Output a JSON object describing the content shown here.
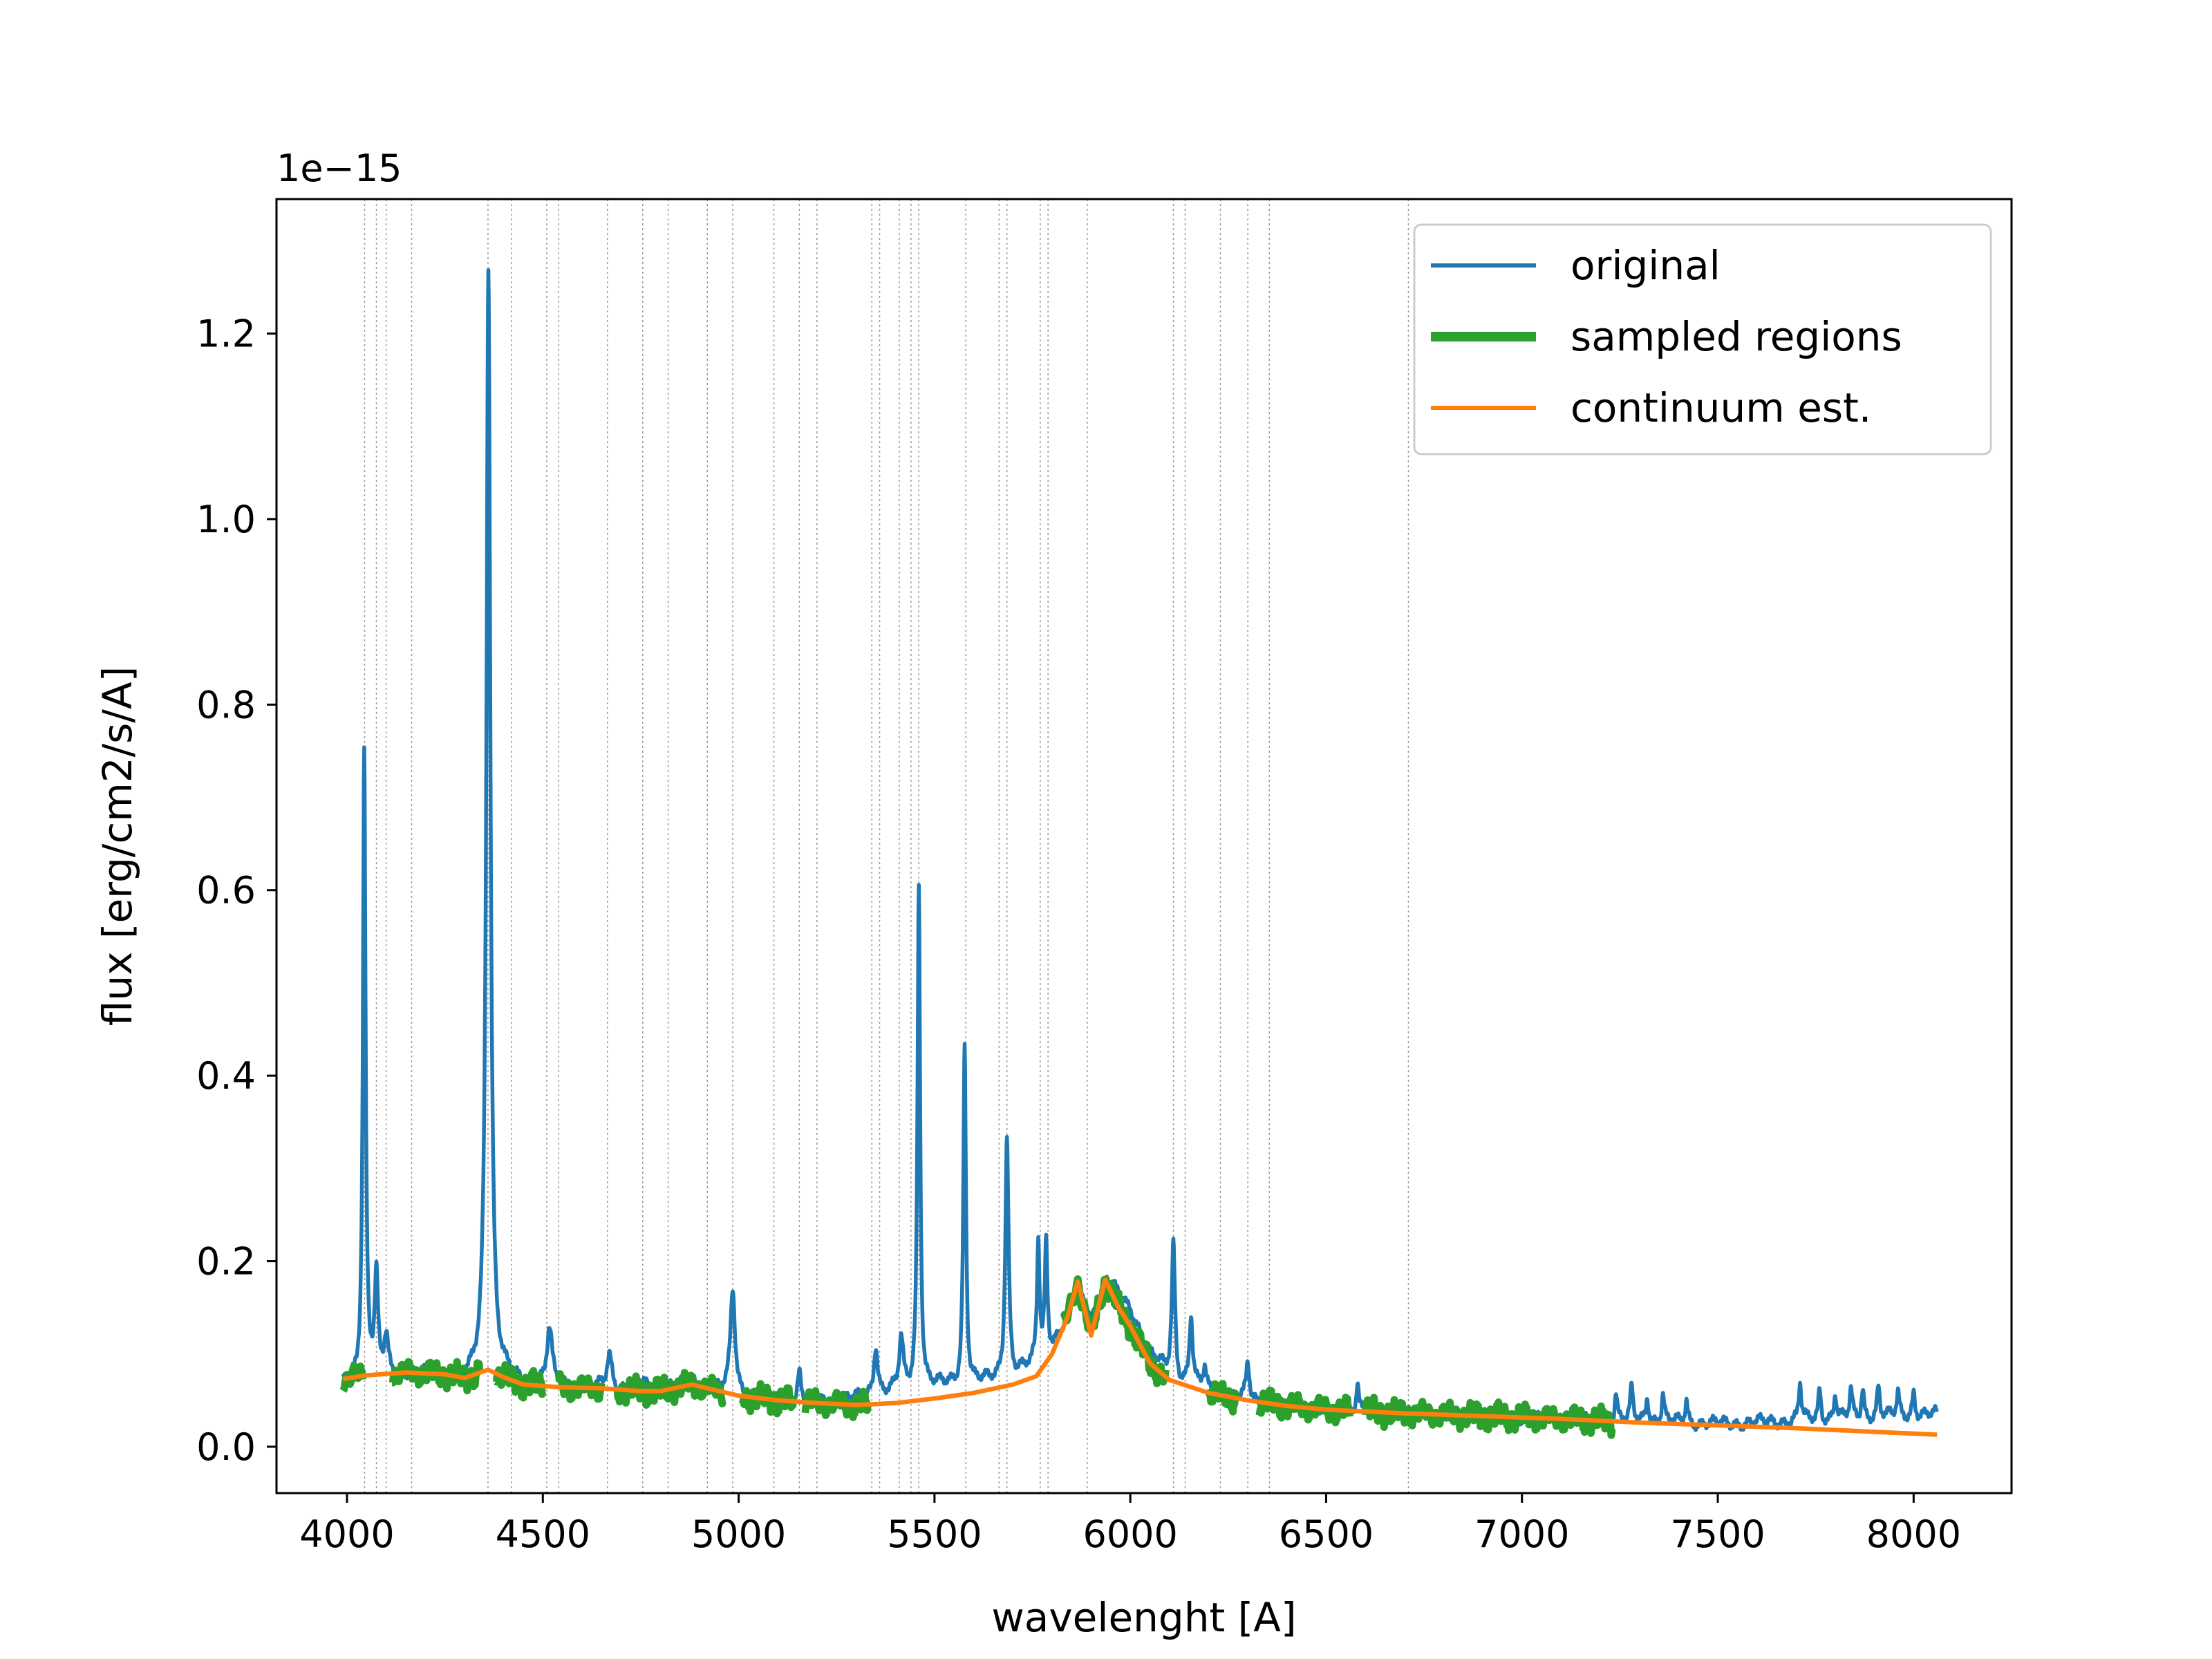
{
  "chart_data": {
    "type": "line",
    "xlabel": "wavelenght [A]",
    "ylabel": "flux [erg/cm2/s/A]",
    "y_offset_label": "1e−15",
    "xlim": [
      3820,
      8250
    ],
    "ylim": [
      -0.05,
      1.345
    ],
    "y_scale": 1e-15,
    "xticks": [
      4000,
      4500,
      5000,
      5500,
      6000,
      6500,
      7000,
      7500,
      8000
    ],
    "yticks": [
      0.0,
      0.2,
      0.4,
      0.6,
      0.8,
      1.0,
      1.2
    ],
    "ytick_labels": [
      "0.0",
      "0.2",
      "0.4",
      "0.6",
      "0.8",
      "1.0",
      "1.2"
    ],
    "grid": false,
    "legend_placement": "top-right",
    "legend": [
      {
        "label": "original",
        "color": "#1f77b4"
      },
      {
        "label": "sampled regions",
        "color": "#2ca02c"
      },
      {
        "label": "continuum est.",
        "color": "#ff7f0e"
      }
    ],
    "vertical_markers": [
      4045,
      4075,
      4100,
      4165,
      4360,
      4420,
      4510,
      4540,
      4665,
      4755,
      4820,
      4920,
      4985,
      5090,
      5155,
      5200,
      5340,
      5360,
      5410,
      5440,
      5460,
      5580,
      5665,
      5685,
      5770,
      5790,
      5890,
      6110,
      6140,
      6230,
      6300,
      6355,
      6710
    ],
    "series": [
      {
        "name": "original",
        "color": "#1f77b4",
        "baseline": [
          [
            3990,
            0.07
          ],
          [
            4100,
            0.08
          ],
          [
            4200,
            0.077
          ],
          [
            4300,
            0.07
          ],
          [
            4360,
            0.08
          ],
          [
            4450,
            0.068
          ],
          [
            4550,
            0.066
          ],
          [
            4700,
            0.062
          ],
          [
            4800,
            0.065
          ],
          [
            4900,
            0.067
          ],
          [
            4960,
            0.06
          ],
          [
            5000,
            0.057
          ],
          [
            5100,
            0.05
          ],
          [
            5200,
            0.049
          ],
          [
            5300,
            0.052
          ],
          [
            5400,
            0.06
          ],
          [
            5500,
            0.065
          ],
          [
            5600,
            0.068
          ],
          [
            5700,
            0.075
          ],
          [
            5760,
            0.09
          ],
          [
            5820,
            0.12
          ],
          [
            5870,
            0.17
          ],
          [
            5900,
            0.14
          ],
          [
            5940,
            0.18
          ],
          [
            6000,
            0.15
          ],
          [
            6050,
            0.1
          ],
          [
            6120,
            0.07
          ],
          [
            6200,
            0.06
          ],
          [
            6300,
            0.05
          ],
          [
            6400,
            0.045
          ],
          [
            6500,
            0.04
          ],
          [
            6700,
            0.036
          ],
          [
            6900,
            0.033
          ],
          [
            7100,
            0.03
          ],
          [
            7300,
            0.028
          ],
          [
            7500,
            0.025
          ],
          [
            7700,
            0.028
          ],
          [
            7900,
            0.032
          ],
          [
            8060,
            0.035
          ]
        ],
        "peaks": [
          {
            "x": 4044,
            "y": 0.75,
            "w": 4
          },
          {
            "x": 4075,
            "y": 0.178,
            "w": 5
          },
          {
            "x": 4100,
            "y": 0.115,
            "w": 6
          },
          {
            "x": 4361,
            "y": 1.275,
            "w": 6
          },
          {
            "x": 4517,
            "y": 0.125,
            "w": 8
          },
          {
            "x": 4670,
            "y": 0.1,
            "w": 8
          },
          {
            "x": 4755,
            "y": 0.07,
            "w": 6
          },
          {
            "x": 4880,
            "y": 0.073,
            "w": 8
          },
          {
            "x": 4985,
            "y": 0.17,
            "w": 7
          },
          {
            "x": 5155,
            "y": 0.08,
            "w": 5
          },
          {
            "x": 5350,
            "y": 0.11,
            "w": 6
          },
          {
            "x": 5415,
            "y": 0.115,
            "w": 6
          },
          {
            "x": 5460,
            "y": 0.605,
            "w": 4
          },
          {
            "x": 5577,
            "y": 0.433,
            "w": 4
          },
          {
            "x": 5685,
            "y": 0.335,
            "w": 5
          },
          {
            "x": 5765,
            "y": 0.222,
            "w": 4
          },
          {
            "x": 5785,
            "y": 0.22,
            "w": 4
          },
          {
            "x": 6110,
            "y": 0.22,
            "w": 5
          },
          {
            "x": 6155,
            "y": 0.14,
            "w": 5
          },
          {
            "x": 6190,
            "y": 0.085,
            "w": 5
          },
          {
            "x": 6300,
            "y": 0.09,
            "w": 5
          },
          {
            "x": 6580,
            "y": 0.072,
            "w": 4
          },
          {
            "x": 7240,
            "y": 0.06,
            "w": 4
          },
          {
            "x": 7280,
            "y": 0.062,
            "w": 4
          },
          {
            "x": 7320,
            "y": 0.055,
            "w": 4
          },
          {
            "x": 7360,
            "y": 0.057,
            "w": 4
          },
          {
            "x": 7420,
            "y": 0.05,
            "w": 4
          },
          {
            "x": 7710,
            "y": 0.068,
            "w": 4
          },
          {
            "x": 7760,
            "y": 0.062,
            "w": 4
          },
          {
            "x": 7800,
            "y": 0.058,
            "w": 4
          },
          {
            "x": 7840,
            "y": 0.06,
            "w": 4
          },
          {
            "x": 7870,
            "y": 0.062,
            "w": 4
          },
          {
            "x": 7910,
            "y": 0.065,
            "w": 4
          },
          {
            "x": 7960,
            "y": 0.058,
            "w": 4
          },
          {
            "x": 8000,
            "y": 0.06,
            "w": 4
          }
        ]
      },
      {
        "name": "sampled regions",
        "color": "#2ca02c",
        "segments": [
          [
            3990,
            4040
          ],
          [
            4115,
            4340
          ],
          [
            4380,
            4500
          ],
          [
            4540,
            4650
          ],
          [
            4690,
            4960
          ],
          [
            5010,
            5140
          ],
          [
            5170,
            5330
          ],
          [
            5830,
            6090
          ],
          [
            6200,
            6270
          ],
          [
            6330,
            6560
          ],
          [
            6600,
            7230
          ]
        ]
      },
      {
        "name": "continuum est.",
        "color": "#ff7f0e",
        "points": [
          [
            3990,
            0.073
          ],
          [
            4050,
            0.077
          ],
          [
            4150,
            0.08
          ],
          [
            4250,
            0.078
          ],
          [
            4300,
            0.074
          ],
          [
            4360,
            0.083
          ],
          [
            4400,
            0.075
          ],
          [
            4450,
            0.067
          ],
          [
            4550,
            0.064
          ],
          [
            4650,
            0.063
          ],
          [
            4750,
            0.06
          ],
          [
            4800,
            0.06
          ],
          [
            4880,
            0.067
          ],
          [
            4950,
            0.06
          ],
          [
            5000,
            0.055
          ],
          [
            5100,
            0.05
          ],
          [
            5200,
            0.047
          ],
          [
            5300,
            0.045
          ],
          [
            5400,
            0.047
          ],
          [
            5500,
            0.052
          ],
          [
            5600,
            0.058
          ],
          [
            5700,
            0.067
          ],
          [
            5760,
            0.076
          ],
          [
            5800,
            0.1
          ],
          [
            5840,
            0.14
          ],
          [
            5866,
            0.178
          ],
          [
            5900,
            0.12
          ],
          [
            5936,
            0.18
          ],
          [
            5970,
            0.15
          ],
          [
            6000,
            0.13
          ],
          [
            6050,
            0.09
          ],
          [
            6100,
            0.072
          ],
          [
            6200,
            0.058
          ],
          [
            6300,
            0.05
          ],
          [
            6400,
            0.044
          ],
          [
            6500,
            0.04
          ],
          [
            6700,
            0.036
          ],
          [
            6900,
            0.033
          ],
          [
            7100,
            0.03
          ],
          [
            7300,
            0.026
          ],
          [
            7500,
            0.023
          ],
          [
            7700,
            0.02
          ],
          [
            7900,
            0.016
          ],
          [
            8060,
            0.013
          ]
        ]
      }
    ]
  }
}
